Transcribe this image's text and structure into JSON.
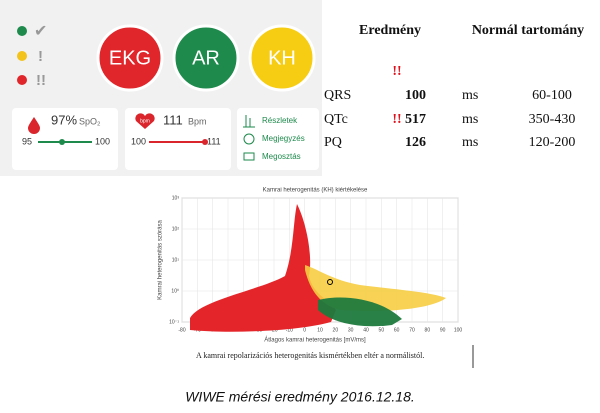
{
  "app": {
    "status": [
      "✔",
      "!",
      "!!"
    ],
    "buttons": [
      "EKG",
      "AR",
      "KH"
    ],
    "spo2": {
      "value": "97%",
      "unit": "SpO₂",
      "min": 95,
      "max": 100
    },
    "pulse": {
      "icon": "bpm",
      "value": 111,
      "unit": "Bpm",
      "min": 100,
      "max": 111
    },
    "actions": [
      "Részletek",
      "Megjegyzés",
      "Megosztás"
    ]
  },
  "table": {
    "header": [
      "Eredmény",
      "Normál tartomány"
    ],
    "alert": "!!",
    "rows": [
      {
        "name": "QRS",
        "value": 100,
        "unit": "ms",
        "range": "60-100"
      },
      {
        "name": "QTc",
        "flag": "!!",
        "value": 517,
        "unit": "ms",
        "range": "350-430"
      },
      {
        "name": "PQ",
        "value": 126,
        "unit": "ms",
        "range": "120-200"
      }
    ]
  },
  "plot": {
    "title": "Kamrai heterogenitás (KH) kiértékelése",
    "xlabel": "Átlagos kamrai heterogenitás [mV/ms]",
    "ylabel": "Kamrai heterogenitás szórása",
    "xticks": [
      -80,
      -70,
      -60,
      -50,
      -40,
      -30,
      -20,
      -10,
      0,
      10,
      20,
      30,
      40,
      50,
      60,
      70,
      80,
      90,
      100
    ],
    "yticks": [
      "10⁻¹",
      "10⁰",
      "10¹",
      "10²",
      "10³"
    ],
    "note": "A kamrai repolarizációs heterogenitás kismértékben eltér a normálistól."
  },
  "caption": "WIWE mérési eredmény 2016.12.18."
}
